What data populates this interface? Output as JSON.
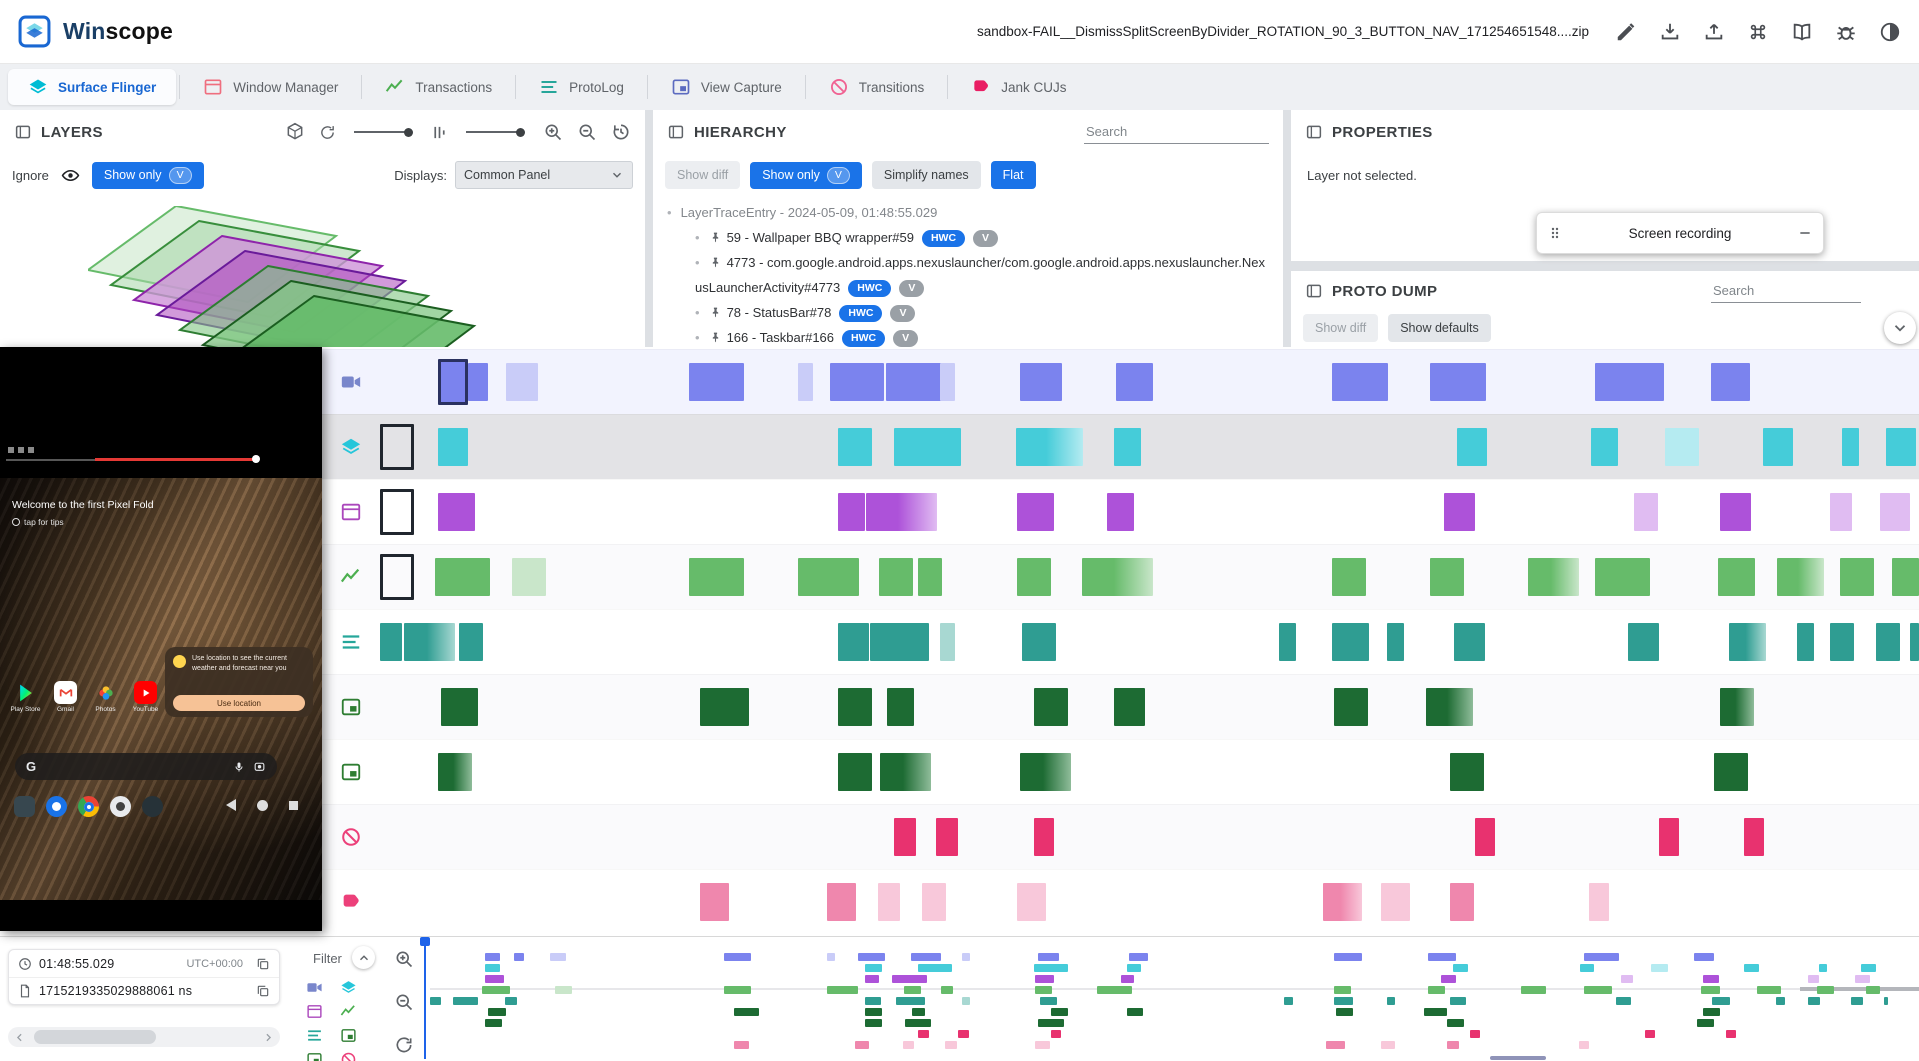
{
  "app": {
    "brand_a": "Win",
    "brand_b": "scope",
    "file": "sandbox-FAIL__DismissSplitScreenByDivider_ROTATION_90_3_BUTTON_NAV_171254651548....zip"
  },
  "tabs": [
    {
      "label": "Surface Flinger",
      "icon": "layers",
      "color": "#00bcd4",
      "active": true
    },
    {
      "label": "Window Manager",
      "icon": "window",
      "color": "#ef6e7e",
      "active": false
    },
    {
      "label": "Transactions",
      "icon": "chart",
      "color": "#4caf50",
      "active": false
    },
    {
      "label": "ProtoLog",
      "icon": "lines",
      "color": "#26a69a",
      "active": false
    },
    {
      "label": "View Capture",
      "icon": "viewcapture",
      "color": "#5c6bc0",
      "active": false
    },
    {
      "label": "Transitions",
      "icon": "transitions",
      "color": "#f06292",
      "active": false
    },
    {
      "label": "Jank CUJs",
      "icon": "jank",
      "color": "#e91e63",
      "active": false
    }
  ],
  "layers": {
    "title": "LAYERS",
    "ignore": "Ignore",
    "show_only": "Show only",
    "v": "V",
    "displays_label": "Displays:",
    "displays_value": "Common Panel"
  },
  "hierarchy": {
    "title": "HIERARCHY",
    "search": "Search",
    "show_diff": "Show diff",
    "show_only": "Show only",
    "v": "V",
    "simplify": "Simplify names",
    "flat": "Flat",
    "root": "LayerTraceEntry - 2024-05-09, 01:48:55.029",
    "nodes": [
      {
        "name": "59 - Wallpaper BBQ wrapper#59",
        "chips": [
          "HWC",
          "V"
        ]
      },
      {
        "name": "4773 - com.google.android.apps.nexuslauncher/com.google.android.apps.nexuslauncher.NexusLauncherActivity#4773",
        "chips": [
          "HWC",
          "V"
        ]
      },
      {
        "name": "78 - StatusBar#78",
        "chips": [
          "HWC",
          "V"
        ]
      },
      {
        "name": "166 - Taskbar#166",
        "chips": [
          "HWC",
          "V"
        ]
      }
    ]
  },
  "properties": {
    "title": "PROPERTIES",
    "empty": "Layer not selected.",
    "recording": "Screen recording"
  },
  "proto": {
    "title": "PROTO DUMP",
    "search": "Search",
    "show_diff": "Show diff",
    "show_defaults": "Show defaults"
  },
  "preview": {
    "welcome": "Welcome to the first Pixel Fold",
    "tips": "tap for tips",
    "toast": "Use location to see the current weather and forecast near you",
    "toast_btn": "Use location",
    "google_g": "G",
    "apps": [
      "Play Store",
      "Gmail",
      "Photos",
      "YouTube"
    ]
  },
  "bottom": {
    "time": "01:48:55.029",
    "tz": "UTC+00:00",
    "ns": "1715219335029888061 ns",
    "filter": "Filter",
    "filter_icons": [
      {
        "icon": "video",
        "color": "#7986cb"
      },
      {
        "icon": "layers",
        "color": "#26c6da"
      },
      {
        "icon": "window",
        "color": "#ab47bc"
      },
      {
        "icon": "chart",
        "color": "#4caf50"
      },
      {
        "icon": "lines",
        "color": "#26a69a"
      },
      {
        "icon": "viewcapture",
        "color": "#2e7d32"
      },
      {
        "icon": "viewcapture",
        "color": "#2e7d32"
      },
      {
        "icon": "transitions",
        "color": "#ec407a"
      }
    ]
  },
  "timeline": {
    "rows": [
      {
        "name": "screen-recording",
        "icon": "video",
        "icon_color": "#7986cb",
        "color": "#7b83ee",
        "light": "#c9ccf8",
        "band": "#f2f3fe",
        "blocks": [
          [
            58,
            30,
            "sel"
          ],
          [
            88,
            20,
            "s"
          ],
          [
            126,
            32,
            "l"
          ],
          [
            309,
            55,
            "s"
          ],
          [
            418,
            15,
            "l"
          ],
          [
            450,
            54,
            "s"
          ],
          [
            506,
            61,
            "s"
          ],
          [
            560,
            15,
            "l"
          ],
          [
            640,
            42,
            "s"
          ],
          [
            736,
            37,
            "s"
          ],
          [
            952,
            56,
            "s"
          ],
          [
            1050,
            56,
            "s"
          ],
          [
            1215,
            69,
            "s"
          ],
          [
            1331,
            39,
            "s"
          ]
        ]
      },
      {
        "name": "surface-flinger",
        "icon": "layers",
        "icon_color": "#26c6da",
        "color": "#45ccd9",
        "light": "#b5ebf1",
        "band": "#e3e3e6",
        "blocks": [
          [
            0,
            34,
            "box"
          ],
          [
            58,
            30,
            "s"
          ],
          [
            458,
            34,
            "s"
          ],
          [
            514,
            67,
            "s"
          ],
          [
            636,
            67,
            "g"
          ],
          [
            734,
            27,
            "s"
          ],
          [
            1077,
            30,
            "s"
          ],
          [
            1211,
            27,
            "s"
          ],
          [
            1285,
            34,
            "l"
          ],
          [
            1383,
            30,
            "s"
          ],
          [
            1462,
            17,
            "s"
          ],
          [
            1506,
            30,
            "s"
          ]
        ]
      },
      {
        "name": "window-manager",
        "icon": "window",
        "icon_color": "#ab47bc",
        "color": "#ad52d9",
        "light": "#e0bcf2",
        "blocks": [
          [
            0,
            34,
            "box"
          ],
          [
            58,
            37,
            "s"
          ],
          [
            458,
            27,
            "s"
          ],
          [
            486,
            71,
            "g"
          ],
          [
            637,
            37,
            "s"
          ],
          [
            727,
            27,
            "s"
          ],
          [
            1064,
            31,
            "s"
          ],
          [
            1254,
            24,
            "l"
          ],
          [
            1340,
            31,
            "s"
          ],
          [
            1450,
            22,
            "l"
          ],
          [
            1500,
            30,
            "l"
          ]
        ]
      },
      {
        "name": "transactions",
        "icon": "chart",
        "icon_color": "#4caf50",
        "color": "#66bb6a",
        "light": "#c9e6ca",
        "blocks": [
          [
            0,
            34,
            "box"
          ],
          [
            55,
            55,
            "s"
          ],
          [
            132,
            34,
            "l"
          ],
          [
            309,
            55,
            "s"
          ],
          [
            418,
            61,
            "s"
          ],
          [
            499,
            34,
            "s"
          ],
          [
            538,
            24,
            "s"
          ],
          [
            637,
            34,
            "s"
          ],
          [
            702,
            71,
            "g"
          ],
          [
            952,
            34,
            "s"
          ],
          [
            1050,
            34,
            "s"
          ],
          [
            1148,
            51,
            "g"
          ],
          [
            1215,
            55,
            "s"
          ],
          [
            1338,
            37,
            "s"
          ],
          [
            1397,
            47,
            "g"
          ],
          [
            1460,
            34,
            "s"
          ],
          [
            1512,
            27,
            "s"
          ]
        ]
      },
      {
        "name": "protolog",
        "icon": "lines",
        "icon_color": "#26a69a",
        "color": "#2f9d92",
        "light": "#a8d8d2",
        "blocks": [
          [
            0,
            22,
            "s"
          ],
          [
            24,
            51,
            "g"
          ],
          [
            79,
            24,
            "s"
          ],
          [
            458,
            31,
            "s"
          ],
          [
            490,
            59,
            "s"
          ],
          [
            560,
            15,
            "l"
          ],
          [
            642,
            34,
            "s"
          ],
          [
            899,
            17,
            "s"
          ],
          [
            952,
            37,
            "s"
          ],
          [
            1007,
            17,
            "s"
          ],
          [
            1074,
            31,
            "s"
          ],
          [
            1248,
            31,
            "s"
          ],
          [
            1349,
            37,
            "g"
          ],
          [
            1417,
            17,
            "s"
          ],
          [
            1450,
            24,
            "s"
          ],
          [
            1496,
            24,
            "s"
          ],
          [
            1530,
            9,
            "s"
          ]
        ]
      },
      {
        "name": "view-capture-taskbar",
        "icon": "viewcapture",
        "icon_color": "#2e7d32",
        "color": "#1d6b33",
        "light": "#8fbc9a",
        "blocks": [
          [
            61,
            37,
            "s"
          ],
          [
            320,
            49,
            "s"
          ],
          [
            458,
            34,
            "s"
          ],
          [
            507,
            27,
            "s"
          ],
          [
            654,
            34,
            "s"
          ],
          [
            734,
            31,
            "s"
          ],
          [
            954,
            34,
            "s"
          ],
          [
            1046,
            47,
            "g"
          ],
          [
            1340,
            34,
            "g"
          ]
        ]
      },
      {
        "name": "view-capture-launcher",
        "icon": "viewcapture",
        "icon_color": "#2e7d32",
        "color": "#1d6b33",
        "light": "#8fbc9a",
        "blocks": [
          [
            58,
            34,
            "g"
          ],
          [
            458,
            34,
            "s"
          ],
          [
            500,
            51,
            "g"
          ],
          [
            640,
            51,
            "g"
          ],
          [
            1070,
            34,
            "s"
          ],
          [
            1334,
            34,
            "s"
          ]
        ]
      },
      {
        "name": "transitions",
        "icon": "transitions",
        "icon_color": "#ec407a",
        "color": "#e8326f",
        "light": "#f6a9c4",
        "blocks": [
          [
            514,
            22,
            "s"
          ],
          [
            556,
            22,
            "s"
          ],
          [
            654,
            20,
            "s"
          ],
          [
            1095,
            20,
            "s"
          ],
          [
            1279,
            20,
            "s"
          ],
          [
            1364,
            20,
            "s"
          ]
        ]
      },
      {
        "name": "jank-cujs",
        "icon": "jank",
        "icon_color": "#ec407a",
        "color": "#ef87ad",
        "light": "#f8c8da",
        "blocks": [
          [
            320,
            29,
            "s"
          ],
          [
            447,
            29,
            "s"
          ],
          [
            498,
            22,
            "l"
          ],
          [
            542,
            24,
            "l"
          ],
          [
            637,
            29,
            "l"
          ],
          [
            943,
            39,
            "g"
          ],
          [
            1001,
            29,
            "l"
          ],
          [
            1070,
            24,
            "s"
          ],
          [
            1209,
            20,
            "l"
          ]
        ]
      }
    ]
  }
}
